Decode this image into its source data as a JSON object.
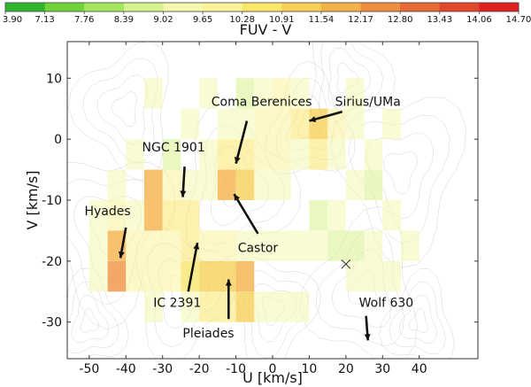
{
  "chart_data": {
    "type": "heatmap",
    "xlabel": "U [km/s]",
    "ylabel": "V [km/s]",
    "xlim": [
      -56,
      56
    ],
    "ylim": [
      -36,
      16
    ],
    "xticks": [
      -50,
      -40,
      -30,
      -20,
      -10,
      0,
      10,
      20,
      30,
      40
    ],
    "yticks": [
      -30,
      -20,
      -10,
      0,
      10
    ],
    "grid": false,
    "colorbar": {
      "label": "FUV - V",
      "position": "top",
      "ticks": [
        "3.90",
        "7.13",
        "7.76",
        "8.39",
        "9.02",
        "9.65",
        "10.28",
        "10.91",
        "11.54",
        "12.17",
        "12.80",
        "13.43",
        "14.06",
        "14.70"
      ],
      "colors": [
        "#2db52d",
        "#6fd43a",
        "#a6e65a",
        "#d6f28c",
        "#f4f7b0",
        "#fbf39a",
        "#f9e76a",
        "#f6d054",
        "#f3b148",
        "#ee8f3e",
        "#e86a34",
        "#e2472c",
        "#de2020"
      ]
    },
    "cells_note_units": "U,V in km/s (cell lower-left corner, 5 km/s wide, 5 km/s tall), value = FUV - V",
    "cells": [
      {
        "u": -45,
        "v": -25,
        "value": 12.3
      },
      {
        "u": -45,
        "v": -20,
        "value": 12.0
      },
      {
        "u": -50,
        "v": -25,
        "value": 9.4
      },
      {
        "u": -50,
        "v": -20,
        "value": 9.2
      },
      {
        "u": -40,
        "v": -25,
        "value": 10.0
      },
      {
        "u": -40,
        "v": -20,
        "value": 9.8
      },
      {
        "u": -40,
        "v": -15,
        "value": 9.6
      },
      {
        "u": -35,
        "v": -15,
        "value": 11.8
      },
      {
        "u": -35,
        "v": -10,
        "value": 11.6
      },
      {
        "u": -30,
        "v": -15,
        "value": 10.3
      },
      {
        "u": -30,
        "v": -10,
        "value": 10.0
      },
      {
        "u": -25,
        "v": -15,
        "value": 10.4
      },
      {
        "u": -25,
        "v": -20,
        "value": 10.6
      },
      {
        "u": -25,
        "v": -25,
        "value": 10.9
      },
      {
        "u": -30,
        "v": -20,
        "value": 10.1
      },
      {
        "u": -30,
        "v": -25,
        "value": 10.2
      },
      {
        "u": -20,
        "v": -25,
        "value": 11.0
      },
      {
        "u": -20,
        "v": -30,
        "value": 10.5
      },
      {
        "u": -15,
        "v": -25,
        "value": 11.2
      },
      {
        "u": -15,
        "v": -30,
        "value": 10.8
      },
      {
        "u": -10,
        "v": -25,
        "value": 12.1
      },
      {
        "u": -10,
        "v": -30,
        "value": 11.0
      },
      {
        "u": -15,
        "v": -20,
        "value": 9.9
      },
      {
        "u": -20,
        "v": -20,
        "value": 10.2
      },
      {
        "u": -10,
        "v": -20,
        "value": 9.6
      },
      {
        "u": -15,
        "v": -10,
        "value": 11.6
      },
      {
        "u": -15,
        "v": -5,
        "value": 10.6
      },
      {
        "u": -10,
        "v": -10,
        "value": 11.3
      },
      {
        "u": -10,
        "v": -5,
        "value": 10.5
      },
      {
        "u": -20,
        "v": -10,
        "value": 9.4
      },
      {
        "u": -25,
        "v": -10,
        "value": 9.6
      },
      {
        "u": -20,
        "v": -5,
        "value": 9.2
      },
      {
        "u": -5,
        "v": -10,
        "value": 9.3
      },
      {
        "u": -5,
        "v": -5,
        "value": 9.7
      },
      {
        "u": 0,
        "v": -5,
        "value": 10.2
      },
      {
        "u": 0,
        "v": -10,
        "value": 9.5
      },
      {
        "u": 5,
        "v": -5,
        "value": 9.3
      },
      {
        "u": 10,
        "v": 0,
        "value": 11.2
      },
      {
        "u": 10,
        "v": -5,
        "value": 10.4
      },
      {
        "u": 5,
        "v": 0,
        "value": 10.3
      },
      {
        "u": 0,
        "v": 0,
        "value": 9.9
      },
      {
        "u": -5,
        "v": 0,
        "value": 9.8
      },
      {
        "u": 15,
        "v": 0,
        "value": 10.1
      },
      {
        "u": 15,
        "v": -5,
        "value": 9.4
      },
      {
        "u": 20,
        "v": 0,
        "value": 9.1
      },
      {
        "u": -10,
        "v": 0,
        "value": 9.5
      },
      {
        "u": -5,
        "v": 5,
        "value": 9.2
      },
      {
        "u": 0,
        "v": 5,
        "value": 10.0
      },
      {
        "u": 5,
        "v": 5,
        "value": 9.6
      },
      {
        "u": -15,
        "v": 0,
        "value": 9.1
      },
      {
        "u": -25,
        "v": 0,
        "value": 9.3
      },
      {
        "u": -30,
        "v": -5,
        "value": 9.0
      },
      {
        "u": -40,
        "v": -5,
        "value": 9.1
      },
      {
        "u": -45,
        "v": -10,
        "value": 9.3
      },
      {
        "u": -50,
        "v": -15,
        "value": 9.5
      },
      {
        "u": -45,
        "v": -15,
        "value": 9.8
      },
      {
        "u": -35,
        "v": -20,
        "value": 9.7
      },
      {
        "u": -35,
        "v": -25,
        "value": 9.9
      },
      {
        "u": -5,
        "v": -20,
        "value": 9.4
      },
      {
        "u": 0,
        "v": -20,
        "value": 9.6
      },
      {
        "u": 5,
        "v": -20,
        "value": 9.2
      },
      {
        "u": 10,
        "v": -20,
        "value": 9.5
      },
      {
        "u": 10,
        "v": -15,
        "value": 8.9
      },
      {
        "u": 15,
        "v": -15,
        "value": 9.3
      },
      {
        "u": 15,
        "v": -20,
        "value": 9.0
      },
      {
        "u": 20,
        "v": -20,
        "value": 8.6
      },
      {
        "u": 20,
        "v": -25,
        "value": 9.1
      },
      {
        "u": 25,
        "v": -25,
        "value": 9.4
      },
      {
        "u": 25,
        "v": -20,
        "value": 9.2
      },
      {
        "u": 30,
        "v": -25,
        "value": 9.1
      },
      {
        "u": 0,
        "v": -30,
        "value": 9.3
      },
      {
        "u": 5,
        "v": -30,
        "value": 9.5
      },
      {
        "u": -5,
        "v": -30,
        "value": 9.2
      },
      {
        "u": -25,
        "v": -30,
        "value": 9.4
      },
      {
        "u": -35,
        "v": -30,
        "value": 9.1
      },
      {
        "u": 20,
        "v": -10,
        "value": 9.2
      },
      {
        "u": 25,
        "v": -10,
        "value": 9.0
      },
      {
        "u": 25,
        "v": -5,
        "value": 9.3
      },
      {
        "u": 30,
        "v": -15,
        "value": 9.2
      },
      {
        "u": 35,
        "v": -20,
        "value": 9.4
      },
      {
        "u": 30,
        "v": 0,
        "value": 9.1
      },
      {
        "u": 20,
        "v": 5,
        "value": 9.3
      },
      {
        "u": -35,
        "v": 5,
        "value": 9.2
      },
      {
        "u": -20,
        "v": 5,
        "value": 9.1
      },
      {
        "u": -10,
        "v": 5,
        "value": 9.0
      }
    ],
    "annotations": [
      {
        "text": "Coma Berenices",
        "tx": -3,
        "ty": 5.5,
        "ax": -7,
        "ay": 3,
        "hx": -10,
        "hy": -4
      },
      {
        "text": "Sirius/UMa",
        "tx": 26,
        "ty": 5.5,
        "ax": 19,
        "ay": 4.5,
        "hx": 10,
        "hy": 3
      },
      {
        "text": "NGC 1901",
        "tx": -27,
        "ty": -2,
        "ax": -24,
        "ay": -4.5,
        "hx": -24.5,
        "hy": -9.5
      },
      {
        "text": "Hyades",
        "tx": -45,
        "ty": -12.5,
        "ax": -40,
        "ay": -14.5,
        "hx": -41.5,
        "hy": -19.5
      },
      {
        "text": "Castor",
        "tx": -4,
        "ty": -18.5,
        "ax": -4,
        "ay": -15.5,
        "hx": -10.5,
        "hy": -9
      },
      {
        "text": "IC 2391",
        "tx": -26,
        "ty": -27.5,
        "ax": -23,
        "ay": -25,
        "hx": -20.5,
        "hy": -17
      },
      {
        "text": "Pleiades",
        "tx": -17.5,
        "ty": -32.5,
        "ax": -12,
        "ay": -29.5,
        "hx": -12,
        "hy": -23
      },
      {
        "text": "Wolf 630",
        "tx": 31,
        "ty": -27.5,
        "ax": 25.5,
        "ay": -29,
        "hx": 26,
        "hy": -33
      }
    ],
    "marker": {
      "symbol": "x",
      "u": 20,
      "v": -20.5
    }
  }
}
